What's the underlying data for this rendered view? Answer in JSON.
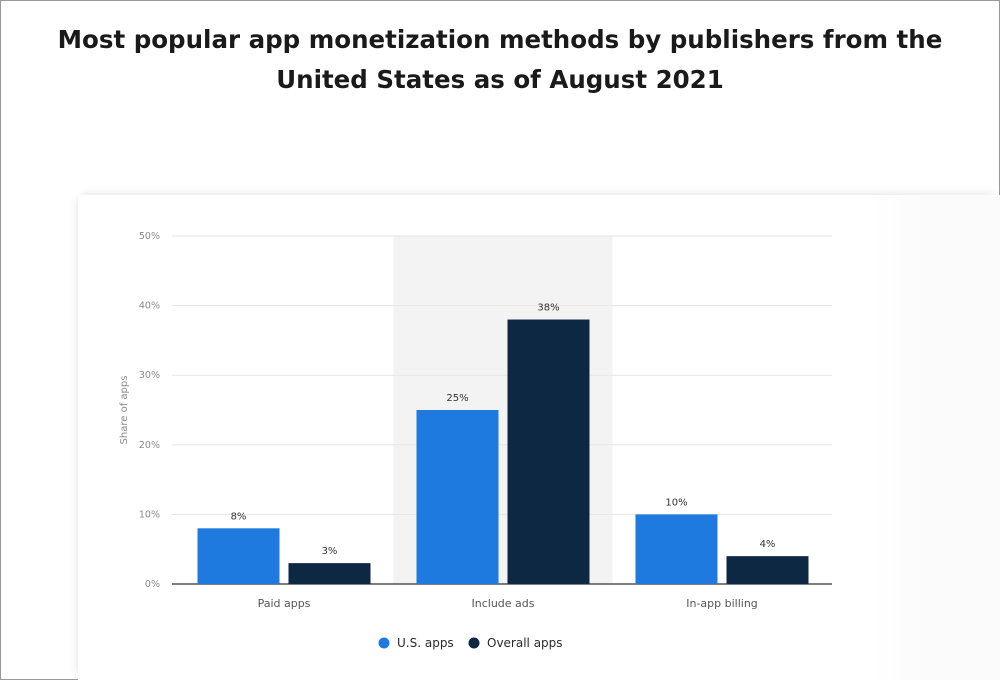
{
  "title_lines": [
    "Most popular app monetization methods by publishers from the",
    "United States as of August 2021"
  ],
  "chart_data": {
    "type": "bar",
    "categories": [
      "Paid apps",
      "Include ads",
      "In-app billing"
    ],
    "series": [
      {
        "name": "U.S. apps",
        "values": [
          8,
          25,
          10
        ],
        "color": "#1f7ae0"
      },
      {
        "name": "Overall apps",
        "values": [
          3,
          38,
          4
        ],
        "color": "#0d2843"
      }
    ],
    "data_labels": [
      [
        "8%",
        "25%",
        "10%"
      ],
      [
        "3%",
        "38%",
        "4%"
      ]
    ],
    "ylabel": "Share of apps",
    "ylim": [
      0,
      50
    ],
    "yticks": [
      0,
      10,
      20,
      30,
      40,
      50
    ],
    "ytick_labels": [
      "0%",
      "10%",
      "20%",
      "30%",
      "40%",
      "50%"
    ],
    "grid": true,
    "highlight_category": "Include ads",
    "legend_position": "bottom-center"
  }
}
